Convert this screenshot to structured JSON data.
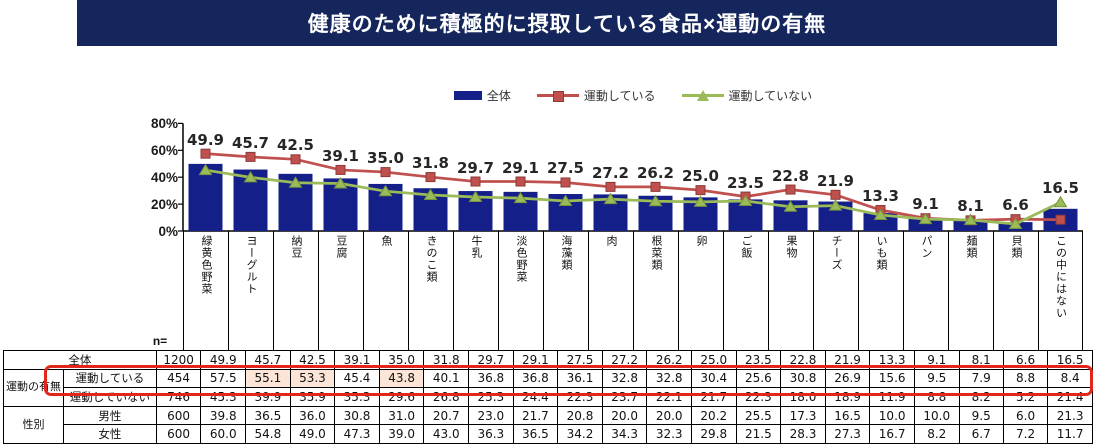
{
  "title": "健康のために積極的に摂取している食品×運動の有無",
  "colors": {
    "title_bg": "#14265B",
    "bar_navy": "#141F8A",
    "line_red": "#C0504D",
    "line_red_edge": "#8B3A38",
    "line_green": "#9BBB59",
    "line_green_edge": "#76923C",
    "highlight_ring": "#E2261C",
    "cell_peach": "#FCE4D6"
  },
  "legend": [
    {
      "label": "全体",
      "marker": "bar",
      "color": "#141F8A"
    },
    {
      "label": "運動している",
      "marker": "line-square",
      "color": "#C0504D"
    },
    {
      "label": "運動していない",
      "marker": "line-triangle",
      "color": "#9BBB59"
    }
  ],
  "chart_data": {
    "type": "bar",
    "subtype": "bar+line combo",
    "title": "健康のために積極的に摂取している食品×運動の有無",
    "categories": [
      "緑黄色野菜",
      "ヨーグルト",
      "納豆",
      "豆腐",
      "魚",
      "きのこ類",
      "牛乳",
      "淡色野菜",
      "海藻類",
      "肉",
      "根菜類",
      "卵",
      "ご飯",
      "果物",
      "チーズ",
      "いも類",
      "パン",
      "麺類",
      "貝類",
      "この中にはない"
    ],
    "series": [
      {
        "name": "全体",
        "type": "bar",
        "color": "#141F8A",
        "values": [
          49.9,
          45.7,
          42.5,
          39.1,
          35.0,
          31.8,
          29.7,
          29.1,
          27.5,
          27.2,
          26.2,
          25.0,
          23.5,
          22.8,
          21.9,
          13.3,
          9.1,
          8.1,
          6.6,
          16.5
        ]
      },
      {
        "name": "運動している",
        "type": "line",
        "marker": "square",
        "color": "#C0504D",
        "values": [
          57.5,
          55.1,
          53.3,
          45.4,
          43.8,
          40.1,
          36.8,
          36.8,
          36.1,
          32.8,
          32.8,
          30.4,
          25.6,
          30.8,
          26.9,
          15.6,
          9.5,
          7.9,
          8.8,
          8.4
        ]
      },
      {
        "name": "運動していない",
        "type": "line",
        "marker": "triangle",
        "color": "#9BBB59",
        "values": [
          45.3,
          39.9,
          35.9,
          35.3,
          29.6,
          26.8,
          25.3,
          24.4,
          22.3,
          23.7,
          22.1,
          21.7,
          22.3,
          18.0,
          18.9,
          11.9,
          8.8,
          8.2,
          5.2,
          21.4
        ]
      }
    ],
    "data_labels": [
      "49.9",
      "45.7",
      "42.5",
      "39.1",
      "35.0",
      "31.8",
      "29.7",
      "29.1",
      "27.5",
      "27.2",
      "26.2",
      "25.0",
      "23.5",
      "22.8",
      "21.9",
      "13.3",
      "9.1",
      "8.1",
      "6.6",
      "16.5"
    ],
    "ylabel": "",
    "xlabel": "",
    "ylim": [
      0,
      80
    ],
    "ytick_labels": [
      "0%",
      "20%",
      "40%",
      "60%",
      "80%"
    ],
    "grid": false,
    "legend_position": "top"
  },
  "table": {
    "n_label": "n=",
    "rows": [
      {
        "label": "全体",
        "merged": true,
        "n": "1200",
        "values": [
          "49.9",
          "45.7",
          "42.5",
          "39.1",
          "35.0",
          "31.8",
          "29.7",
          "29.1",
          "27.5",
          "27.2",
          "26.2",
          "25.0",
          "23.5",
          "22.8",
          "21.9",
          "13.3",
          "9.1",
          "8.1",
          "6.6",
          "16.5"
        ]
      },
      {
        "group": "運動の有無",
        "group_rowspan": 2,
        "label": "運動している",
        "n": "454",
        "highlighted": true,
        "highlight_cells": [
          1,
          2,
          4
        ],
        "values": [
          "57.5",
          "55.1",
          "53.3",
          "45.4",
          "43.8",
          "40.1",
          "36.8",
          "36.8",
          "36.1",
          "32.8",
          "32.8",
          "30.4",
          "25.6",
          "30.8",
          "26.9",
          "15.6",
          "9.5",
          "7.9",
          "8.8",
          "8.4"
        ]
      },
      {
        "label": "運動していない",
        "n": "746",
        "values": [
          "45.3",
          "39.9",
          "35.9",
          "35.3",
          "29.6",
          "26.8",
          "25.3",
          "24.4",
          "22.3",
          "23.7",
          "22.1",
          "21.7",
          "22.3",
          "18.0",
          "18.9",
          "11.9",
          "8.8",
          "8.2",
          "5.2",
          "21.4"
        ]
      },
      {
        "group": "性別",
        "group_rowspan": 2,
        "label": "男性",
        "n": "600",
        "values": [
          "39.8",
          "36.5",
          "36.0",
          "30.8",
          "31.0",
          "20.7",
          "23.0",
          "21.7",
          "20.8",
          "20.0",
          "20.0",
          "20.2",
          "25.5",
          "17.3",
          "16.5",
          "10.0",
          "10.0",
          "9.5",
          "6.0",
          "21.3"
        ]
      },
      {
        "label": "女性",
        "n": "600",
        "dotted_top": true,
        "values": [
          "60.0",
          "54.8",
          "49.0",
          "47.3",
          "39.0",
          "43.0",
          "36.3",
          "36.5",
          "34.2",
          "34.3",
          "32.3",
          "29.8",
          "21.5",
          "28.3",
          "27.3",
          "16.7",
          "8.2",
          "6.7",
          "7.2",
          "11.7"
        ]
      }
    ]
  }
}
